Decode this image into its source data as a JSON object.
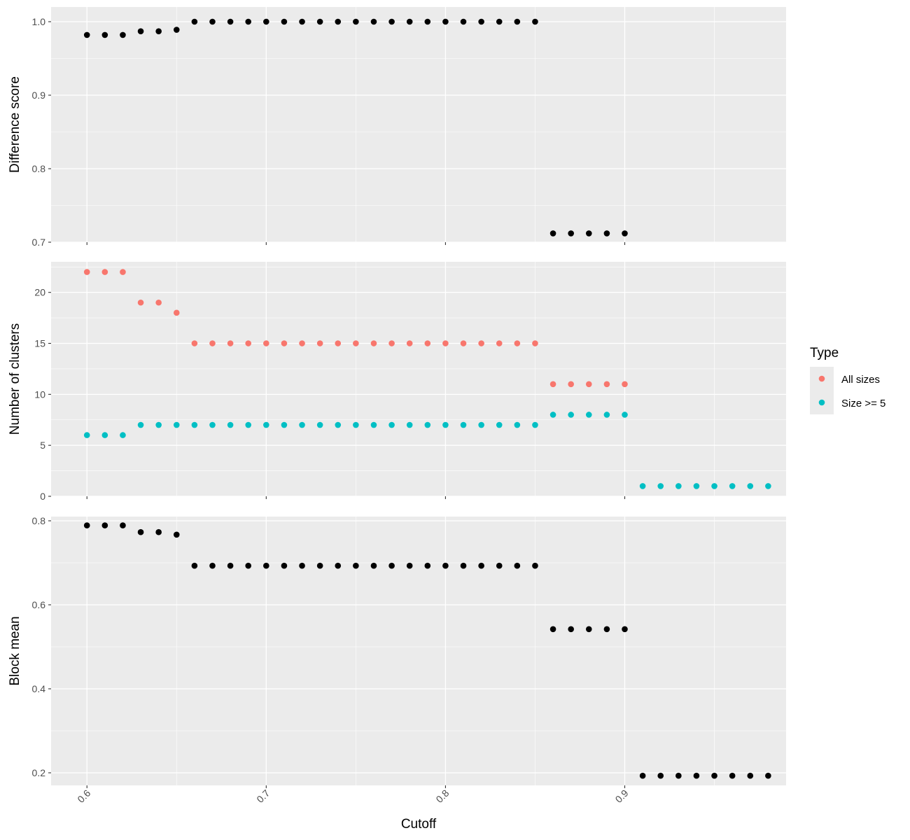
{
  "chart_data": [
    {
      "type": "scatter",
      "ylabel": "Difference score",
      "ylim": [
        0.7,
        1.02
      ],
      "yticks": [
        "0.7",
        "0.8",
        "0.9",
        "1.0"
      ],
      "xlim": [
        0.58,
        0.99
      ],
      "grid": true,
      "series": [
        {
          "color": "#000000",
          "points": [
            [
              0.6,
              0.982
            ],
            [
              0.61,
              0.982
            ],
            [
              0.62,
              0.982
            ],
            [
              0.63,
              0.987
            ],
            [
              0.64,
              0.987
            ],
            [
              0.65,
              0.989
            ],
            [
              0.66,
              1.0
            ],
            [
              0.67,
              1.0
            ],
            [
              0.68,
              1.0
            ],
            [
              0.69,
              1.0
            ],
            [
              0.7,
              1.0
            ],
            [
              0.71,
              1.0
            ],
            [
              0.72,
              1.0
            ],
            [
              0.73,
              1.0
            ],
            [
              0.74,
              1.0
            ],
            [
              0.75,
              1.0
            ],
            [
              0.76,
              1.0
            ],
            [
              0.77,
              1.0
            ],
            [
              0.78,
              1.0
            ],
            [
              0.79,
              1.0
            ],
            [
              0.8,
              1.0
            ],
            [
              0.81,
              1.0
            ],
            [
              0.82,
              1.0
            ],
            [
              0.83,
              1.0
            ],
            [
              0.84,
              1.0
            ],
            [
              0.85,
              1.0
            ],
            [
              0.86,
              0.712
            ],
            [
              0.87,
              0.712
            ],
            [
              0.88,
              0.712
            ],
            [
              0.89,
              0.712
            ],
            [
              0.9,
              0.712
            ]
          ]
        }
      ]
    },
    {
      "type": "scatter",
      "ylabel": "Number of clusters",
      "ylim": [
        0,
        23
      ],
      "yticks": [
        "0",
        "5",
        "10",
        "15",
        "20"
      ],
      "xlim": [
        0.58,
        0.99
      ],
      "grid": true,
      "legend": {
        "title": "Type",
        "placement": "right"
      },
      "series": [
        {
          "name": "All sizes",
          "color": "#F8766D",
          "points": [
            [
              0.6,
              22
            ],
            [
              0.61,
              22
            ],
            [
              0.62,
              22
            ],
            [
              0.63,
              19
            ],
            [
              0.64,
              19
            ],
            [
              0.65,
              18
            ],
            [
              0.66,
              15
            ],
            [
              0.67,
              15
            ],
            [
              0.68,
              15
            ],
            [
              0.69,
              15
            ],
            [
              0.7,
              15
            ],
            [
              0.71,
              15
            ],
            [
              0.72,
              15
            ],
            [
              0.73,
              15
            ],
            [
              0.74,
              15
            ],
            [
              0.75,
              15
            ],
            [
              0.76,
              15
            ],
            [
              0.77,
              15
            ],
            [
              0.78,
              15
            ],
            [
              0.79,
              15
            ],
            [
              0.8,
              15
            ],
            [
              0.81,
              15
            ],
            [
              0.82,
              15
            ],
            [
              0.83,
              15
            ],
            [
              0.84,
              15
            ],
            [
              0.85,
              15
            ],
            [
              0.86,
              11
            ],
            [
              0.87,
              11
            ],
            [
              0.88,
              11
            ],
            [
              0.89,
              11
            ],
            [
              0.9,
              11
            ]
          ]
        },
        {
          "name": "Size >= 5",
          "color": "#00BFC4",
          "points": [
            [
              0.6,
              6
            ],
            [
              0.61,
              6
            ],
            [
              0.62,
              6
            ],
            [
              0.63,
              7
            ],
            [
              0.64,
              7
            ],
            [
              0.65,
              7
            ],
            [
              0.66,
              7
            ],
            [
              0.67,
              7
            ],
            [
              0.68,
              7
            ],
            [
              0.69,
              7
            ],
            [
              0.7,
              7
            ],
            [
              0.71,
              7
            ],
            [
              0.72,
              7
            ],
            [
              0.73,
              7
            ],
            [
              0.74,
              7
            ],
            [
              0.75,
              7
            ],
            [
              0.76,
              7
            ],
            [
              0.77,
              7
            ],
            [
              0.78,
              7
            ],
            [
              0.79,
              7
            ],
            [
              0.8,
              7
            ],
            [
              0.81,
              7
            ],
            [
              0.82,
              7
            ],
            [
              0.83,
              7
            ],
            [
              0.84,
              7
            ],
            [
              0.85,
              7
            ],
            [
              0.86,
              8
            ],
            [
              0.87,
              8
            ],
            [
              0.88,
              8
            ],
            [
              0.89,
              8
            ],
            [
              0.9,
              8
            ],
            [
              0.91,
              1
            ],
            [
              0.92,
              1
            ],
            [
              0.93,
              1
            ],
            [
              0.94,
              1
            ],
            [
              0.95,
              1
            ],
            [
              0.96,
              1
            ],
            [
              0.97,
              1
            ],
            [
              0.98,
              1
            ]
          ]
        }
      ]
    },
    {
      "type": "scatter",
      "ylabel": "Block mean",
      "ylim": [
        0.17,
        0.81
      ],
      "yticks": [
        "0.2",
        "0.4",
        "0.6",
        "0.8"
      ],
      "xlim": [
        0.58,
        0.99
      ],
      "xticks": [
        "0.6",
        "0.7",
        "0.8",
        "0.9"
      ],
      "xlabel": "Cutoff",
      "grid": true,
      "series": [
        {
          "color": "#000000",
          "points": [
            [
              0.6,
              0.789
            ],
            [
              0.61,
              0.789
            ],
            [
              0.62,
              0.789
            ],
            [
              0.63,
              0.773
            ],
            [
              0.64,
              0.773
            ],
            [
              0.65,
              0.767
            ],
            [
              0.66,
              0.693
            ],
            [
              0.67,
              0.693
            ],
            [
              0.68,
              0.693
            ],
            [
              0.69,
              0.693
            ],
            [
              0.7,
              0.693
            ],
            [
              0.71,
              0.693
            ],
            [
              0.72,
              0.693
            ],
            [
              0.73,
              0.693
            ],
            [
              0.74,
              0.693
            ],
            [
              0.75,
              0.693
            ],
            [
              0.76,
              0.693
            ],
            [
              0.77,
              0.693
            ],
            [
              0.78,
              0.693
            ],
            [
              0.79,
              0.693
            ],
            [
              0.8,
              0.693
            ],
            [
              0.81,
              0.693
            ],
            [
              0.82,
              0.693
            ],
            [
              0.83,
              0.693
            ],
            [
              0.84,
              0.693
            ],
            [
              0.85,
              0.693
            ],
            [
              0.86,
              0.542
            ],
            [
              0.87,
              0.542
            ],
            [
              0.88,
              0.542
            ],
            [
              0.89,
              0.542
            ],
            [
              0.9,
              0.542
            ],
            [
              0.91,
              0.193
            ],
            [
              0.92,
              0.193
            ],
            [
              0.93,
              0.193
            ],
            [
              0.94,
              0.193
            ],
            [
              0.95,
              0.193
            ],
            [
              0.96,
              0.193
            ],
            [
              0.97,
              0.193
            ],
            [
              0.98,
              0.193
            ]
          ]
        }
      ]
    }
  ],
  "colors": {
    "panel_bg": "#EBEBEB",
    "grid": "#FFFFFF",
    "tick_text": "#4D4D4D"
  }
}
